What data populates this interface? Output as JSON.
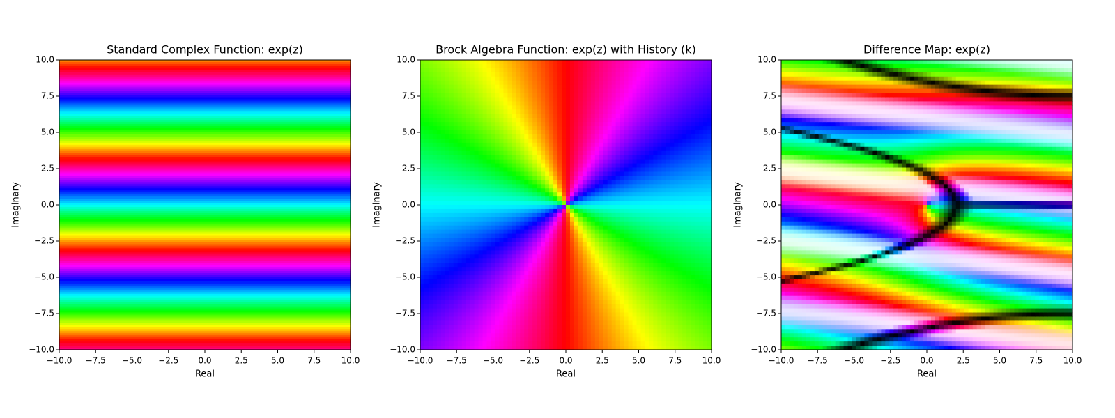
{
  "chart_data": [
    {
      "type": "image",
      "title": "Standard Complex Function: exp(z)",
      "xlabel": "Real",
      "ylabel": "Imaginary",
      "xlim": [
        -10,
        10
      ],
      "ylim": [
        -10,
        10
      ],
      "xticks": [
        {
          "value": -10,
          "label": "−10.0"
        },
        {
          "value": -7.5,
          "label": "−7.5"
        },
        {
          "value": -5,
          "label": "−5.0"
        },
        {
          "value": -2.5,
          "label": "−2.5"
        },
        {
          "value": 0,
          "label": "0.0"
        },
        {
          "value": 2.5,
          "label": "2.5"
        },
        {
          "value": 5,
          "label": "5.0"
        },
        {
          "value": 7.5,
          "label": "7.5"
        },
        {
          "value": 10,
          "label": "10.0"
        }
      ],
      "yticks": [
        {
          "value": -10,
          "label": "−10.0"
        },
        {
          "value": -7.5,
          "label": "−7.5"
        },
        {
          "value": -5,
          "label": "−5.0"
        },
        {
          "value": -2.5,
          "label": "−2.5"
        },
        {
          "value": 0,
          "label": "0.0"
        },
        {
          "value": 2.5,
          "label": "2.5"
        },
        {
          "value": 5,
          "label": "5.0"
        },
        {
          "value": 7.5,
          "label": "7.5"
        },
        {
          "value": 10,
          "label": "10.0"
        }
      ]
    },
    {
      "type": "image",
      "title": "Brock Algebra Function: exp(z) with History (k)",
      "xlabel": "Real",
      "ylabel": "Imaginary",
      "xlim": [
        -10,
        10
      ],
      "ylim": [
        -10,
        10
      ],
      "xticks": [
        {
          "value": -10,
          "label": "−10.0"
        },
        {
          "value": -7.5,
          "label": "−7.5"
        },
        {
          "value": -5,
          "label": "−5.0"
        },
        {
          "value": -2.5,
          "label": "−2.5"
        },
        {
          "value": 0,
          "label": "0.0"
        },
        {
          "value": 2.5,
          "label": "2.5"
        },
        {
          "value": 5,
          "label": "5.0"
        },
        {
          "value": 7.5,
          "label": "7.5"
        },
        {
          "value": 10,
          "label": "10.0"
        }
      ],
      "yticks": [
        {
          "value": -10,
          "label": "−10.0"
        },
        {
          "value": -7.5,
          "label": "−7.5"
        },
        {
          "value": -5,
          "label": "−5.0"
        },
        {
          "value": -2.5,
          "label": "−2.5"
        },
        {
          "value": 0,
          "label": "0.0"
        },
        {
          "value": 2.5,
          "label": "2.5"
        },
        {
          "value": 5,
          "label": "5.0"
        },
        {
          "value": 7.5,
          "label": "7.5"
        },
        {
          "value": 10,
          "label": "10.0"
        }
      ]
    },
    {
      "type": "image",
      "title": "Difference Map: exp(z)",
      "xlabel": "Real",
      "ylabel": "Imaginary",
      "xlim": [
        -10,
        10
      ],
      "ylim": [
        -10,
        10
      ],
      "xticks": [
        {
          "value": -10,
          "label": "−10.0"
        },
        {
          "value": -7.5,
          "label": "−7.5"
        },
        {
          "value": -5,
          "label": "−5.0"
        },
        {
          "value": -2.5,
          "label": "−2.5"
        },
        {
          "value": 0,
          "label": "0.0"
        },
        {
          "value": 2.5,
          "label": "2.5"
        },
        {
          "value": 5,
          "label": "5.0"
        },
        {
          "value": 7.5,
          "label": "7.5"
        },
        {
          "value": 10,
          "label": "10.0"
        }
      ],
      "yticks": [
        {
          "value": -10,
          "label": "−10.0"
        },
        {
          "value": -7.5,
          "label": "−7.5"
        },
        {
          "value": -5,
          "label": "−5.0"
        },
        {
          "value": -2.5,
          "label": "−2.5"
        },
        {
          "value": 0,
          "label": "0.0"
        },
        {
          "value": 2.5,
          "label": "2.5"
        },
        {
          "value": 5,
          "label": "5.0"
        },
        {
          "value": 7.5,
          "label": "7.5"
        },
        {
          "value": 10,
          "label": "10.0"
        }
      ]
    }
  ]
}
